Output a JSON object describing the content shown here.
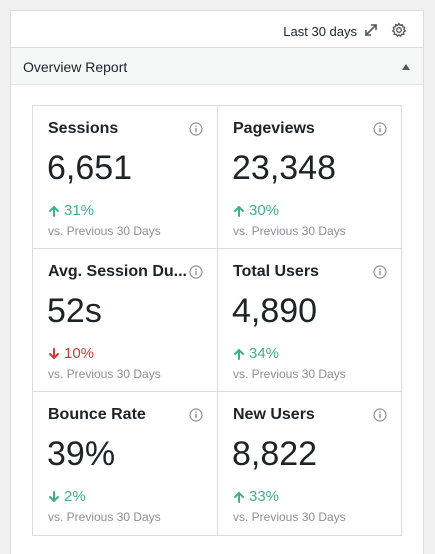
{
  "header": {
    "date_range": "Last 30 days"
  },
  "section": {
    "title": "Overview Report"
  },
  "metrics": [
    {
      "title": "Sessions",
      "value": "6,651",
      "change": "31%",
      "direction": "up",
      "comparison": "vs. Previous 30 Days"
    },
    {
      "title": "Pageviews",
      "value": "23,348",
      "change": "30%",
      "direction": "up",
      "comparison": "vs. Previous 30 Days"
    },
    {
      "title": "Avg. Session Du...",
      "value": "52s",
      "change": "10%",
      "direction": "down",
      "comparison": "vs. Previous 30 Days"
    },
    {
      "title": "Total Users",
      "value": "4,890",
      "change": "34%",
      "direction": "up",
      "comparison": "vs. Previous 30 Days"
    },
    {
      "title": "Bounce Rate",
      "value": "39%",
      "change": "2%",
      "direction": "down",
      "comparison": "vs. Previous 30 Days"
    },
    {
      "title": "New Users",
      "value": "8,822",
      "change": "33%",
      "direction": "up",
      "comparison": "vs. Previous 30 Days"
    }
  ],
  "colors": {
    "positive": "#3fb08e",
    "negative": "#d63638",
    "muted": "#8c8f94",
    "border": "#dcdcde"
  },
  "icons": {
    "expand": "expand-icon",
    "settings": "gear-icon",
    "info": "info-icon",
    "collapse": "chevron-up-icon"
  }
}
